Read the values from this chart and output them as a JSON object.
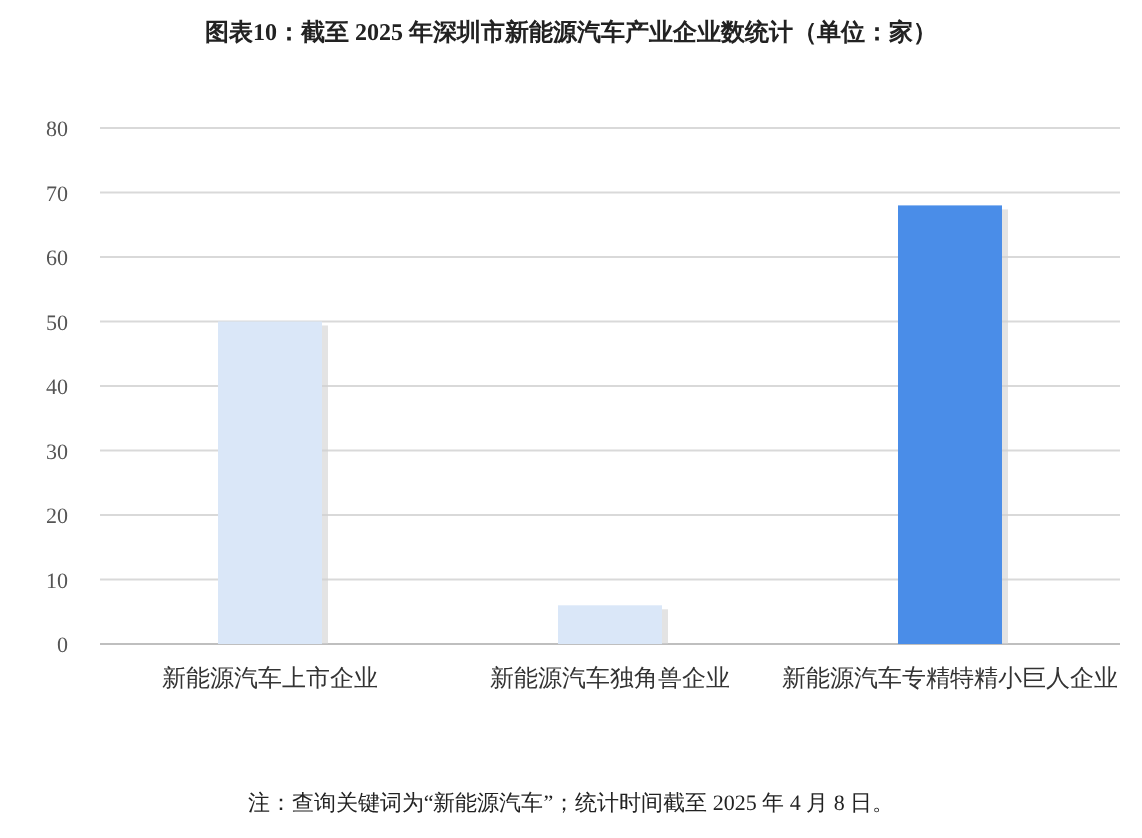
{
  "chart_data": {
    "type": "bar",
    "title": "图表10：截至 2025 年深圳市新能源汽车产业企业数统计（单位：家）",
    "categories": [
      "新能源汽车上市企业",
      "新能源汽车独角兽企业",
      "新能源汽车专精特精小巨人企业"
    ],
    "values": [
      50,
      6,
      68
    ],
    "colors": [
      "#dae7f8",
      "#dae7f8",
      "#4a8de8"
    ],
    "ylim": [
      0,
      80
    ],
    "yticks": [
      0,
      10,
      20,
      30,
      40,
      50,
      60,
      70,
      80
    ],
    "grid": "y",
    "annotations": [
      "注：查询关键词为“新能源汽车”；统计时间截至 2025 年 4 月 8 日。"
    ]
  }
}
